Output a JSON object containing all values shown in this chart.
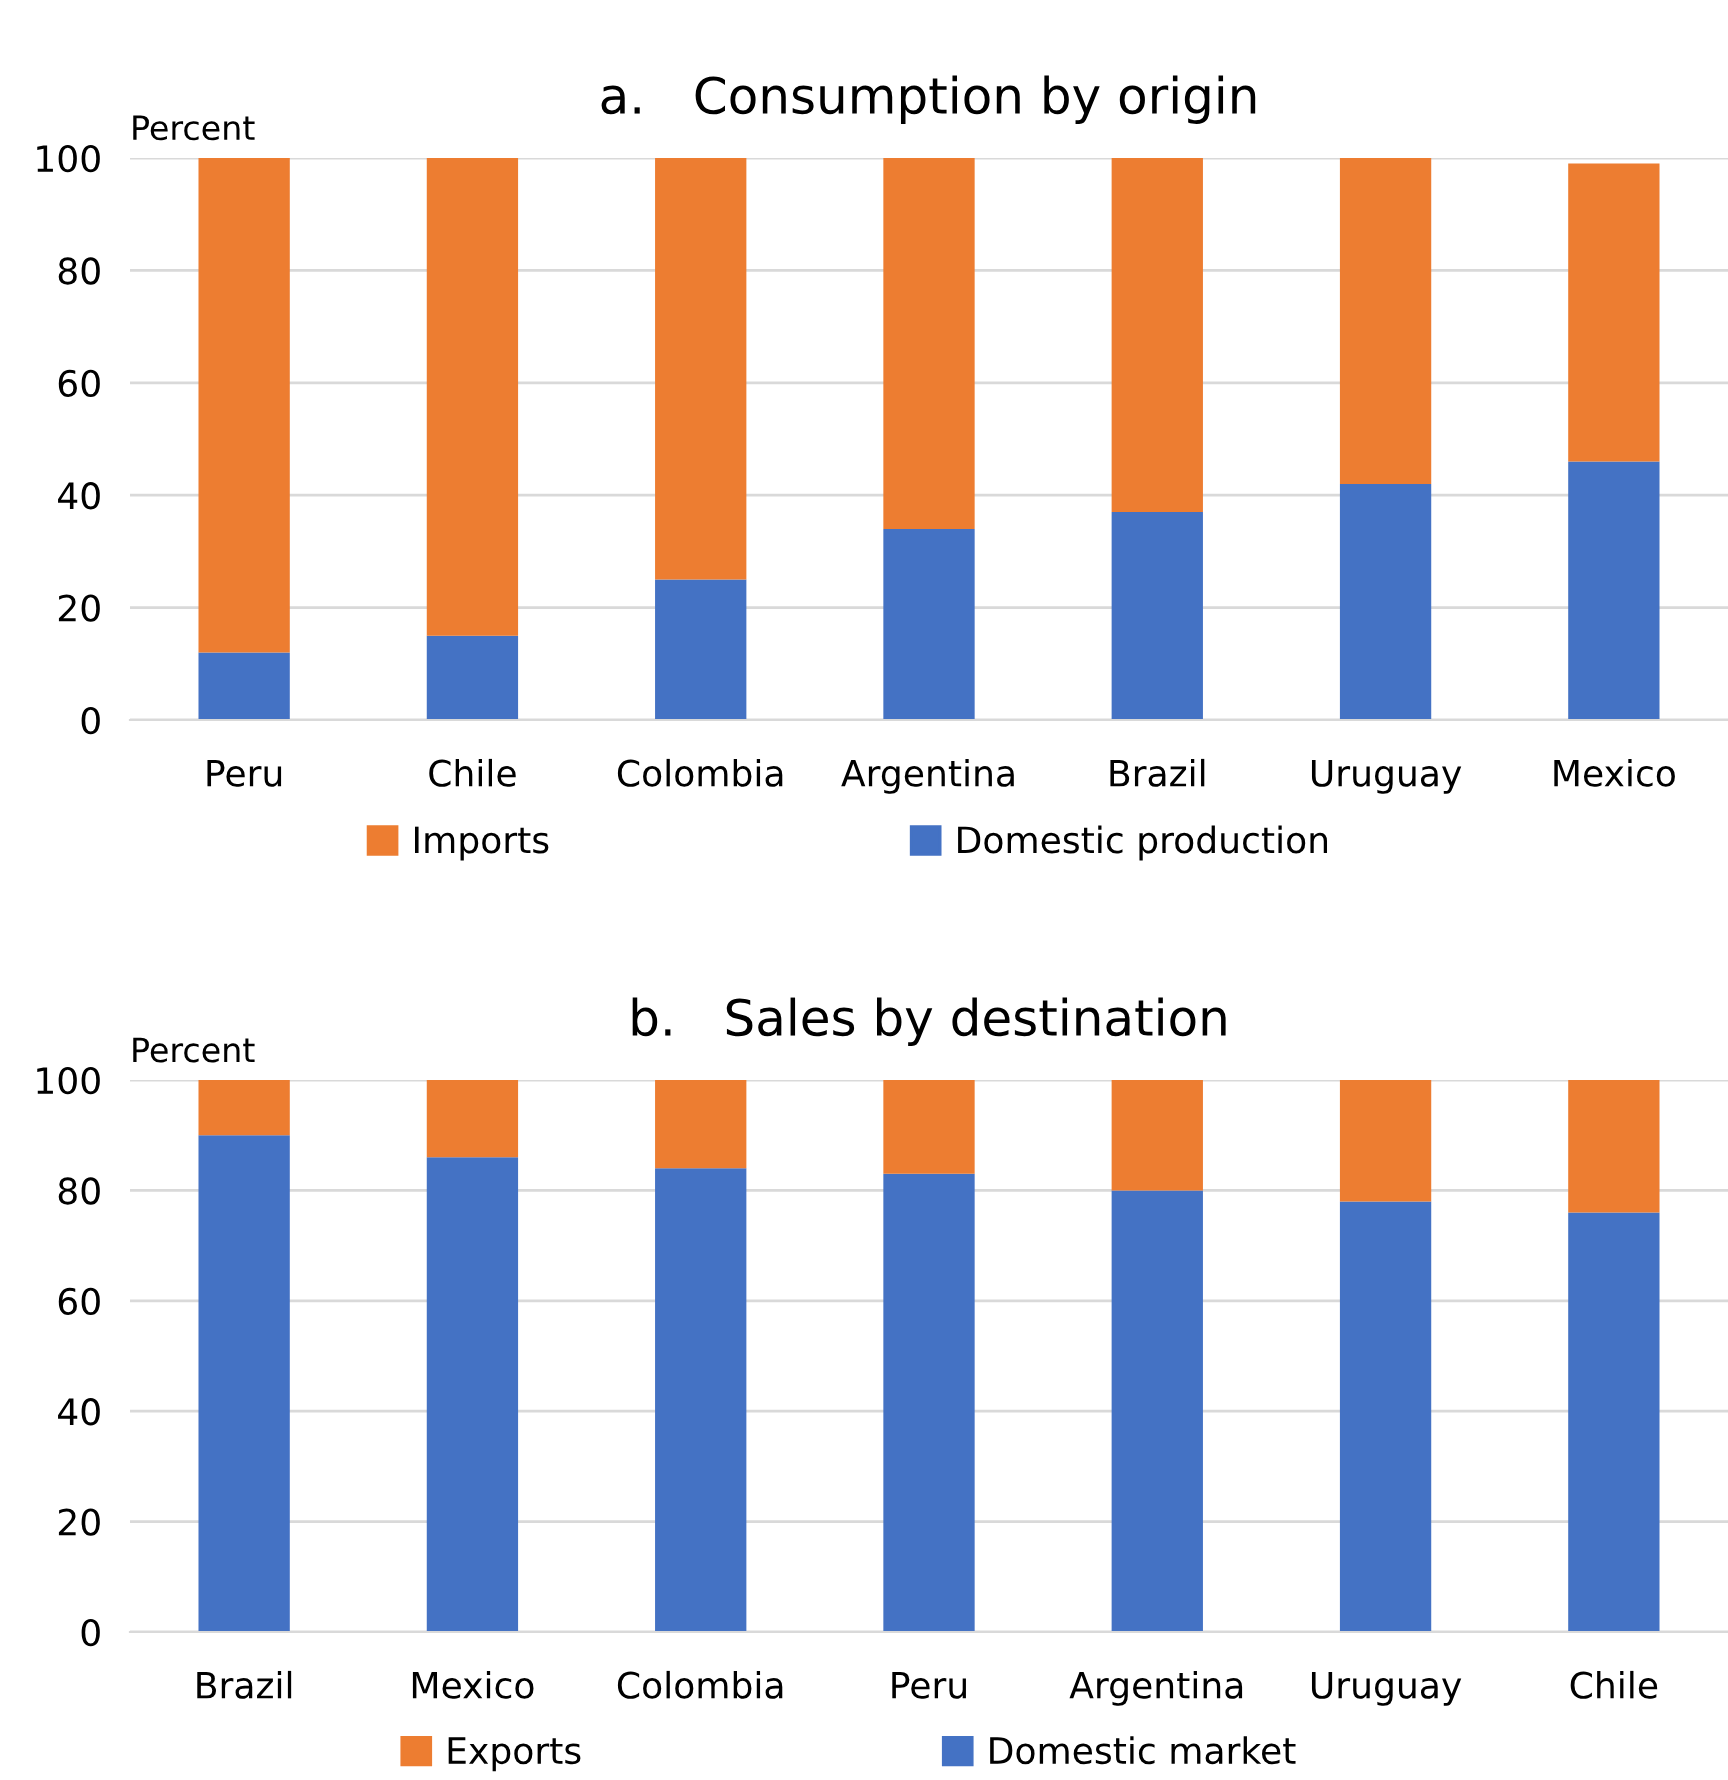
{
  "chart_data": [
    {
      "type": "bar",
      "title": "a.   Consumption by origin",
      "ylabel": "Percent",
      "stacked": true,
      "categories": [
        "Peru",
        "Chile",
        "Colombia",
        "Argentina",
        "Brazil",
        "Uruguay",
        "Mexico"
      ],
      "series": [
        {
          "name": "Domestic production",
          "color": "#4472c4",
          "values": [
            12,
            15,
            25,
            34,
            37,
            42,
            46
          ]
        },
        {
          "name": "Imports",
          "color": "#ed7d31",
          "values": [
            88,
            85,
            75,
            66,
            63,
            58,
            53
          ]
        }
      ],
      "ylim": [
        0,
        100
      ],
      "yticks": [
        0,
        20,
        40,
        60,
        80,
        100
      ],
      "grid": "y",
      "legend": "bottom"
    },
    {
      "type": "bar",
      "title": "b.   Sales by destination",
      "ylabel": "Percent",
      "stacked": true,
      "categories": [
        "Brazil",
        "Mexico",
        "Colombia",
        "Peru",
        "Argentina",
        "Uruguay",
        "Chile"
      ],
      "series": [
        {
          "name": "Domestic market",
          "color": "#4472c4",
          "values": [
            90,
            86,
            84,
            83,
            80,
            78,
            76
          ]
        },
        {
          "name": "Exports",
          "color": "#ed7d31",
          "values": [
            10,
            14,
            16,
            17,
            20,
            22,
            24
          ]
        }
      ],
      "ylim": [
        0,
        100
      ],
      "yticks": [
        0,
        20,
        40,
        60,
        80,
        100
      ],
      "grid": "y",
      "legend": "bottom"
    }
  ]
}
